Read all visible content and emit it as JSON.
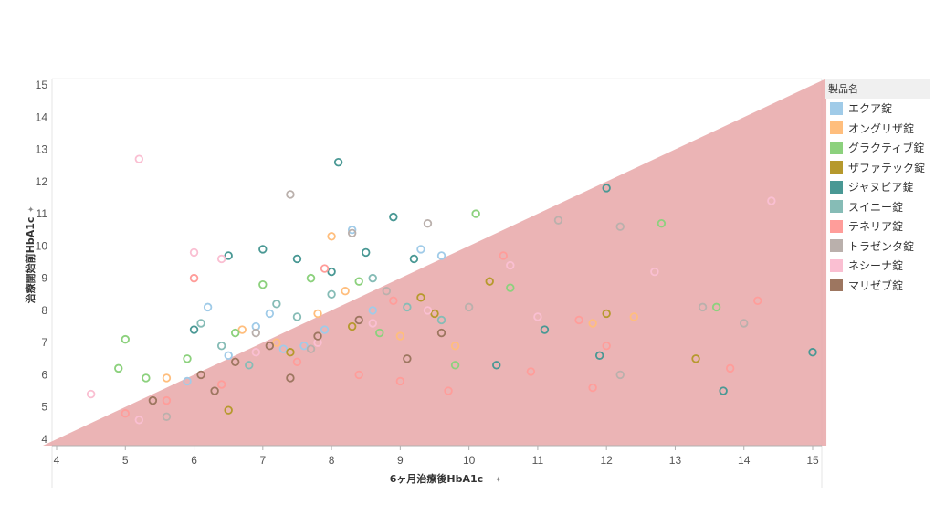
{
  "chart_data": {
    "type": "scatter",
    "xlabel": "6ヶ月治療後HbA1c",
    "ylabel": "治療開始前HbA1c",
    "xlim": [
      4,
      15
    ],
    "ylim": [
      3.8,
      15.2
    ],
    "x_ticks": [
      4,
      5,
      6,
      7,
      8,
      9,
      10,
      11,
      12,
      13,
      14,
      15
    ],
    "y_ticks": [
      4,
      5,
      6,
      7,
      8,
      9,
      10,
      11,
      12,
      13,
      14,
      15
    ],
    "grid": false,
    "marker": "hollow-circle",
    "reference_region": {
      "description": "y < x",
      "color": "#e8a7a8"
    },
    "legend_title": "製品名",
    "legend_position": "right",
    "series": [
      {
        "name": "エクア錠",
        "color": "#a0cbe8",
        "points": [
          [
            5.9,
            5.8
          ],
          [
            6.2,
            8.1
          ],
          [
            6.5,
            6.6
          ],
          [
            7.1,
            7.9
          ],
          [
            7.3,
            6.8
          ],
          [
            7.9,
            7.4
          ],
          [
            8.3,
            10.5
          ],
          [
            8.6,
            8.0
          ],
          [
            9.3,
            9.9
          ],
          [
            9.6,
            9.7
          ],
          [
            6.9,
            7.5
          ],
          [
            7.6,
            6.9
          ]
        ]
      },
      {
        "name": "オングリザ錠",
        "color": "#ffbe7d",
        "points": [
          [
            5.6,
            5.9
          ],
          [
            6.7,
            7.4
          ],
          [
            7.2,
            7.0
          ],
          [
            8.0,
            10.3
          ],
          [
            8.2,
            8.6
          ],
          [
            9.0,
            7.2
          ],
          [
            9.8,
            6.9
          ],
          [
            11.8,
            7.6
          ],
          [
            12.4,
            7.8
          ],
          [
            7.8,
            7.9
          ]
        ]
      },
      {
        "name": "グラクティブ錠",
        "color": "#8cd17d",
        "points": [
          [
            5.0,
            7.1
          ],
          [
            4.9,
            6.2
          ],
          [
            5.3,
            5.9
          ],
          [
            5.9,
            6.5
          ],
          [
            6.6,
            7.3
          ],
          [
            7.0,
            8.8
          ],
          [
            7.7,
            9.0
          ],
          [
            8.4,
            8.9
          ],
          [
            8.7,
            7.3
          ],
          [
            10.1,
            11.0
          ],
          [
            10.6,
            8.7
          ],
          [
            12.8,
            10.7
          ],
          [
            13.6,
            8.1
          ],
          [
            9.8,
            6.3
          ]
        ]
      },
      {
        "name": "ザファテック錠",
        "color": "#b6992d",
        "points": [
          [
            6.5,
            4.9
          ],
          [
            7.4,
            6.7
          ],
          [
            8.3,
            7.5
          ],
          [
            9.5,
            7.9
          ],
          [
            10.3,
            8.9
          ],
          [
            12.0,
            7.9
          ],
          [
            13.3,
            6.5
          ],
          [
            9.3,
            8.4
          ]
        ]
      },
      {
        "name": "ジャヌビア錠",
        "color": "#499894",
        "points": [
          [
            8.1,
            12.6
          ],
          [
            8.9,
            10.9
          ],
          [
            7.0,
            9.9
          ],
          [
            6.5,
            9.7
          ],
          [
            8.5,
            9.8
          ],
          [
            7.5,
            9.6
          ],
          [
            8.0,
            9.2
          ],
          [
            9.2,
            9.6
          ],
          [
            10.4,
            6.3
          ],
          [
            11.1,
            7.4
          ],
          [
            11.9,
            6.6
          ],
          [
            13.7,
            5.5
          ],
          [
            15.0,
            6.7
          ],
          [
            12.0,
            11.8
          ],
          [
            6.0,
            7.4
          ]
        ]
      },
      {
        "name": "スイニー錠",
        "color": "#86bcb6",
        "points": [
          [
            6.1,
            7.6
          ],
          [
            6.4,
            6.9
          ],
          [
            7.2,
            8.2
          ],
          [
            8.0,
            8.5
          ],
          [
            8.6,
            9.0
          ],
          [
            9.1,
            8.1
          ],
          [
            9.6,
            7.7
          ],
          [
            6.8,
            6.3
          ],
          [
            7.5,
            7.8
          ]
        ]
      },
      {
        "name": "テネリア錠",
        "color": "#ff9d9a",
        "points": [
          [
            5.0,
            4.8
          ],
          [
            5.6,
            5.2
          ],
          [
            6.0,
            9.0
          ],
          [
            6.4,
            5.7
          ],
          [
            7.5,
            6.4
          ],
          [
            8.4,
            6.0
          ],
          [
            9.0,
            5.8
          ],
          [
            9.7,
            5.5
          ],
          [
            10.5,
            9.7
          ],
          [
            10.9,
            6.1
          ],
          [
            11.6,
            7.7
          ],
          [
            11.8,
            5.6
          ],
          [
            12.0,
            6.9
          ],
          [
            13.8,
            6.2
          ],
          [
            14.2,
            8.3
          ],
          [
            8.9,
            8.3
          ],
          [
            7.9,
            9.3
          ]
        ]
      },
      {
        "name": "トラゼンタ錠",
        "color": "#bab0ac",
        "points": [
          [
            7.4,
            11.6
          ],
          [
            8.3,
            10.4
          ],
          [
            9.4,
            10.7
          ],
          [
            6.9,
            7.3
          ],
          [
            7.7,
            6.8
          ],
          [
            8.8,
            8.6
          ],
          [
            10.0,
            8.1
          ],
          [
            11.3,
            10.8
          ],
          [
            12.2,
            10.6
          ],
          [
            14.0,
            7.6
          ],
          [
            12.2,
            6.0
          ],
          [
            5.6,
            4.7
          ],
          [
            13.4,
            8.1
          ]
        ]
      },
      {
        "name": "ネシーナ錠",
        "color": "#fabfd2",
        "points": [
          [
            5.2,
            12.7
          ],
          [
            6.0,
            9.8
          ],
          [
            6.4,
            9.6
          ],
          [
            4.5,
            5.4
          ],
          [
            5.2,
            4.6
          ],
          [
            6.9,
            6.7
          ],
          [
            7.8,
            7.0
          ],
          [
            8.6,
            7.6
          ],
          [
            9.4,
            8.0
          ],
          [
            11.0,
            7.8
          ],
          [
            12.7,
            9.2
          ],
          [
            14.4,
            11.4
          ],
          [
            10.6,
            9.4
          ]
        ]
      },
      {
        "name": "マリゼブ錠",
        "color": "#9d7660",
        "points": [
          [
            5.4,
            5.2
          ],
          [
            6.1,
            6.0
          ],
          [
            6.6,
            6.4
          ],
          [
            7.1,
            6.9
          ],
          [
            7.8,
            7.2
          ],
          [
            8.4,
            7.7
          ],
          [
            9.1,
            6.5
          ],
          [
            9.6,
            7.3
          ],
          [
            6.3,
            5.5
          ],
          [
            7.4,
            5.9
          ]
        ]
      }
    ]
  }
}
